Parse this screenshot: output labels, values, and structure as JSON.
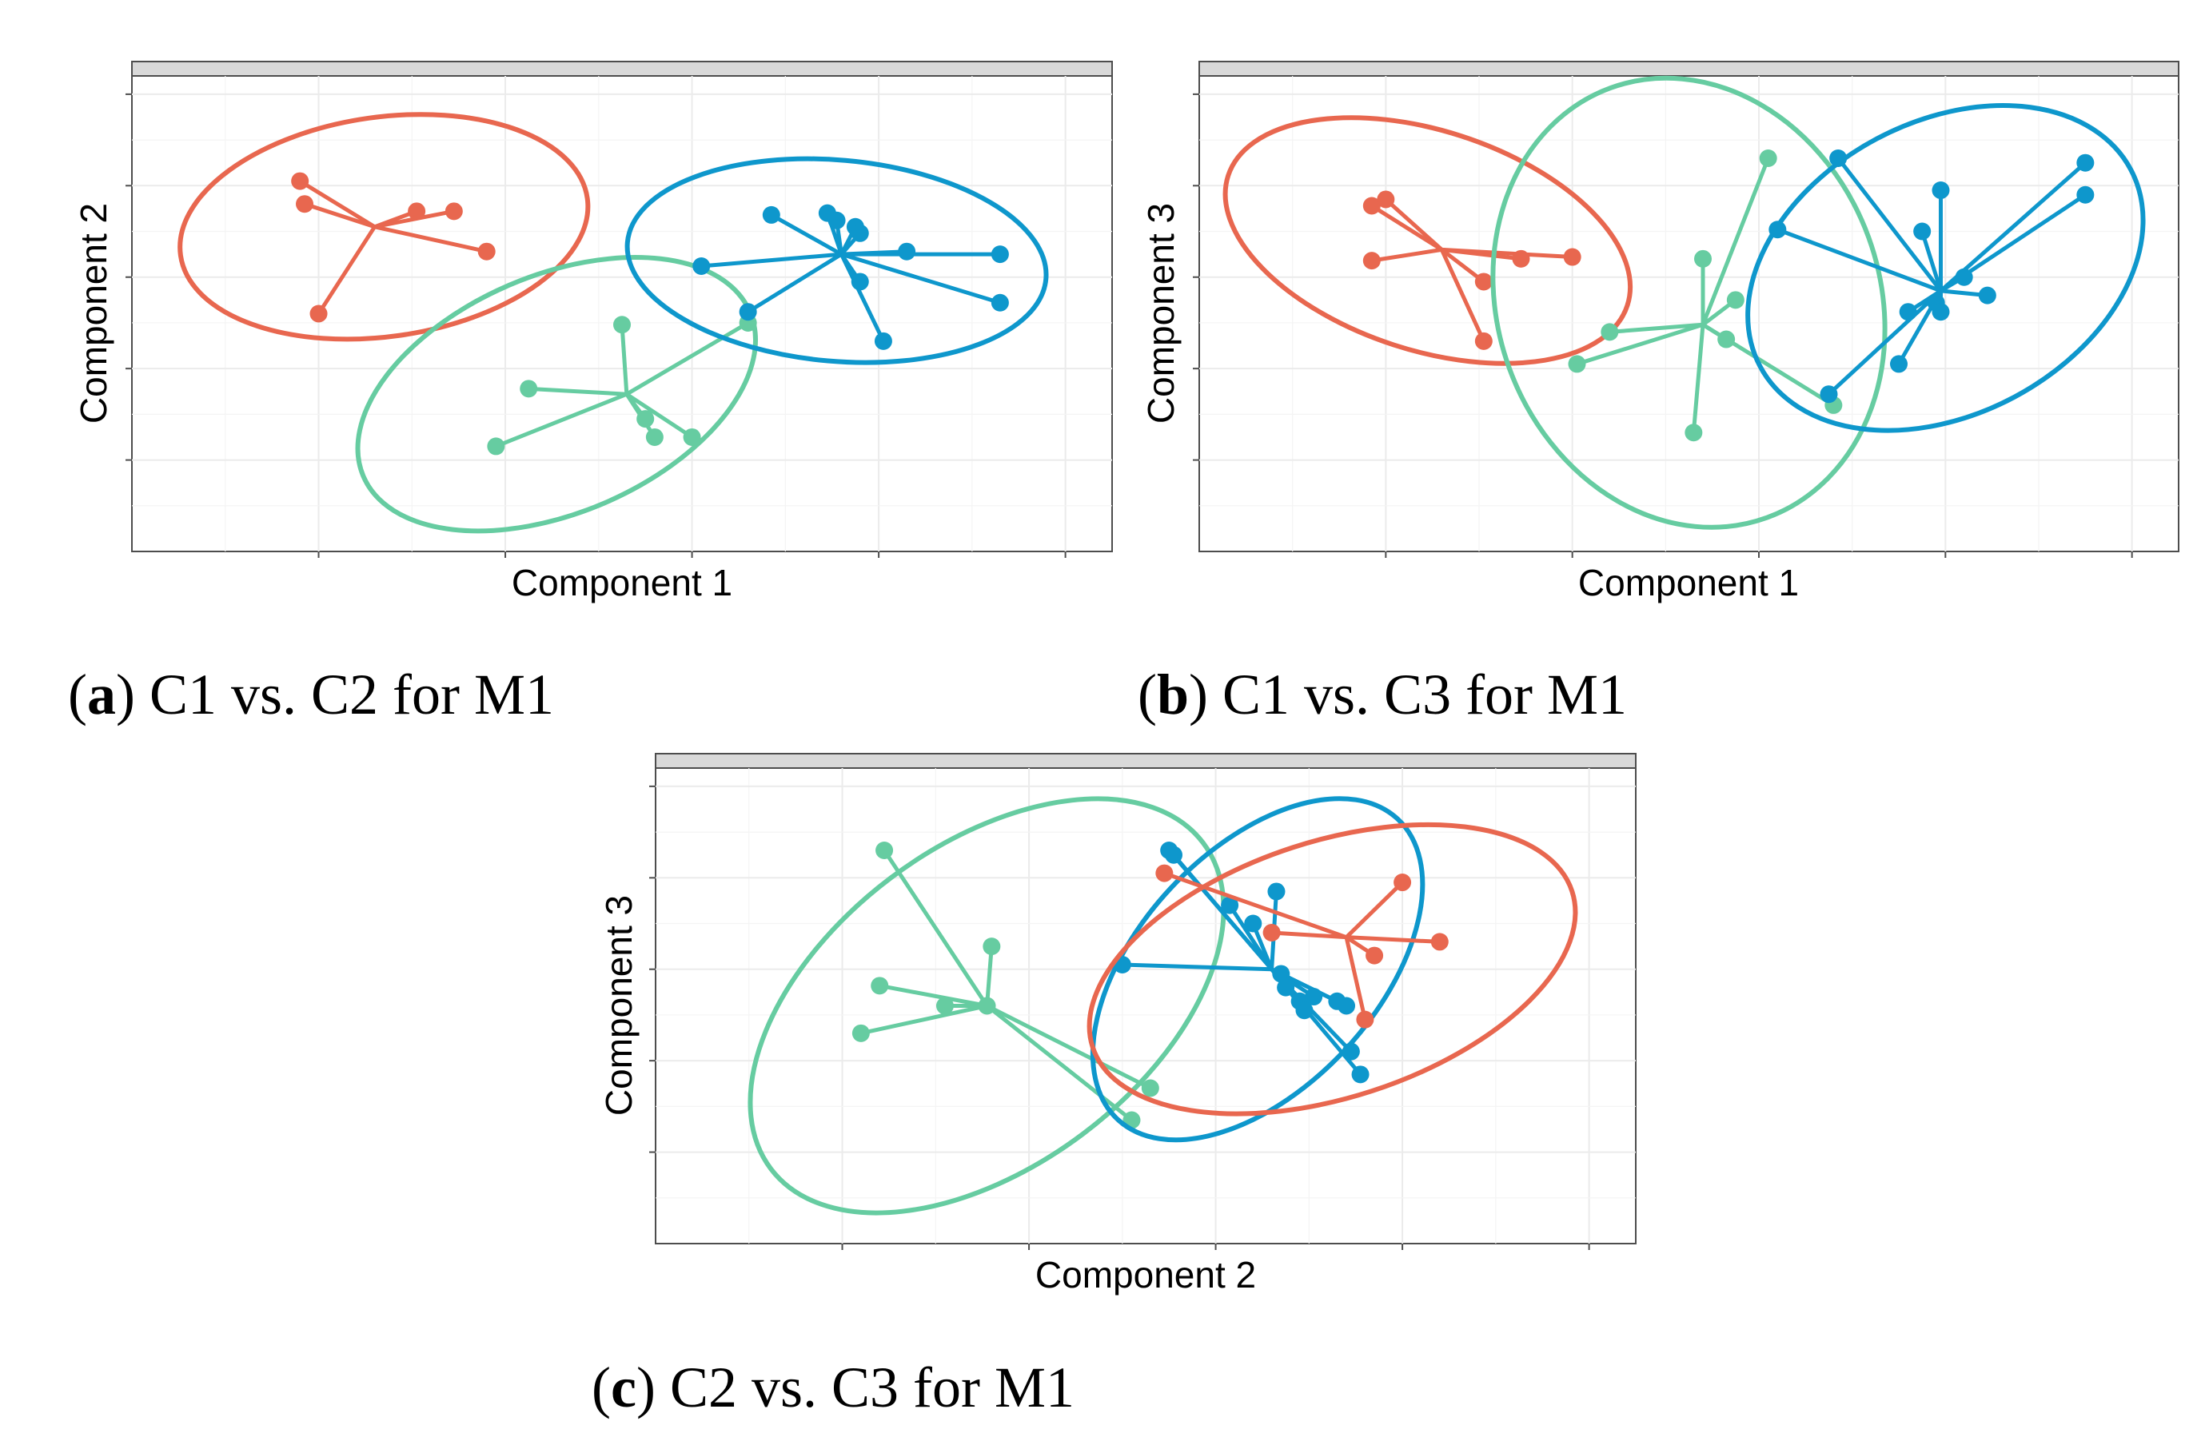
{
  "colors": {
    "red": "#E8674F",
    "green": "#66CCA1",
    "blue": "#0E97CC"
  },
  "captions": [
    {
      "label": "a",
      "text": "C1 vs. C2 for M1"
    },
    {
      "label": "b",
      "text": "C1 vs. C3 for M1"
    },
    {
      "label": "c",
      "text": "C2 vs. C3 for M1"
    }
  ],
  "chart_data": [
    {
      "type": "scatter",
      "panel": "a",
      "title": "C1 vs. C2 for M1",
      "xlabel": "Component 1",
      "ylabel": "Component 2",
      "xlim": [
        0,
        10.5
      ],
      "ylim": [
        0,
        5.2
      ],
      "series": [
        {
          "name": "group-red",
          "color": "#E8674F",
          "centroid": [
            2.6,
            3.55
          ],
          "ellipse": {
            "cx": 2.7,
            "cy": 3.55,
            "rx": 2.2,
            "ry": 1.2,
            "angle": 8
          },
          "points": [
            [
              1.8,
              4.05
            ],
            [
              1.85,
              3.8
            ],
            [
              3.05,
              3.72
            ],
            [
              3.45,
              3.72
            ],
            [
              3.8,
              3.28
            ],
            [
              2.0,
              2.6
            ]
          ]
        },
        {
          "name": "group-green",
          "color": "#66CCA1",
          "centroid": [
            5.3,
            1.72
          ],
          "ellipse": {
            "cx": 4.55,
            "cy": 1.72,
            "rx": 2.25,
            "ry": 1.3,
            "angle": 23
          },
          "points": [
            [
              5.25,
              2.48
            ],
            [
              4.25,
              1.78
            ],
            [
              5.5,
              1.45
            ],
            [
              5.6,
              1.25
            ],
            [
              6.0,
              1.25
            ],
            [
              3.9,
              1.15
            ],
            [
              6.6,
              2.5
            ]
          ]
        },
        {
          "name": "group-blue",
          "color": "#0E97CC",
          "centroid": [
            7.6,
            3.25
          ],
          "ellipse": {
            "cx": 7.55,
            "cy": 3.18,
            "rx": 2.25,
            "ry": 1.1,
            "angle": -5
          },
          "points": [
            [
              6.85,
              3.68
            ],
            [
              7.45,
              3.7
            ],
            [
              7.55,
              3.62
            ],
            [
              7.75,
              3.55
            ],
            [
              7.8,
              3.48
            ],
            [
              8.3,
              3.28
            ],
            [
              9.3,
              3.25
            ],
            [
              6.1,
              3.12
            ],
            [
              7.8,
              2.95
            ],
            [
              6.6,
              2.62
            ],
            [
              9.3,
              2.72
            ],
            [
              8.05,
              2.3
            ]
          ]
        }
      ]
    },
    {
      "type": "scatter",
      "panel": "b",
      "title": "C1 vs. C3 for M1",
      "xlabel": "Component 1",
      "ylabel": "Component 3",
      "xlim": [
        0,
        10.5
      ],
      "ylim": [
        0,
        5.2
      ],
      "series": [
        {
          "name": "group-red",
          "color": "#E8674F",
          "centroid": [
            2.6,
            3.3
          ],
          "ellipse": {
            "cx": 2.45,
            "cy": 3.4,
            "rx": 2.25,
            "ry": 1.2,
            "angle": -18
          },
          "points": [
            [
              1.85,
              3.78
            ],
            [
              2.0,
              3.85
            ],
            [
              1.85,
              3.18
            ],
            [
              3.45,
              3.2
            ],
            [
              4.0,
              3.22
            ],
            [
              3.05,
              2.95
            ],
            [
              3.05,
              2.3
            ]
          ]
        },
        {
          "name": "group-green",
          "color": "#66CCA1",
          "centroid": [
            5.4,
            2.48
          ],
          "ellipse": {
            "cx": 5.25,
            "cy": 2.72,
            "rx": 2.05,
            "ry": 2.5,
            "angle": 20
          },
          "points": [
            [
              6.1,
              4.3
            ],
            [
              5.4,
              3.2
            ],
            [
              5.75,
              2.75
            ],
            [
              4.4,
              2.4
            ],
            [
              5.65,
              2.32
            ],
            [
              4.05,
              2.05
            ],
            [
              6.8,
              1.6
            ],
            [
              5.3,
              1.3
            ]
          ]
        },
        {
          "name": "group-blue",
          "color": "#0E97CC",
          "centroid": [
            7.95,
            2.85
          ],
          "ellipse": {
            "cx": 8.0,
            "cy": 3.1,
            "rx": 2.25,
            "ry": 1.6,
            "angle": 28
          },
          "points": [
            [
              6.85,
              4.3
            ],
            [
              9.5,
              4.25
            ],
            [
              7.95,
              3.95
            ],
            [
              9.5,
              3.9
            ],
            [
              6.2,
              3.52
            ],
            [
              7.75,
              3.5
            ],
            [
              8.2,
              3.0
            ],
            [
              8.45,
              2.8
            ],
            [
              7.9,
              2.72
            ],
            [
              7.95,
              2.62
            ],
            [
              7.6,
              2.62
            ],
            [
              7.5,
              2.05
            ],
            [
              6.75,
              1.72
            ]
          ]
        }
      ]
    },
    {
      "type": "scatter",
      "panel": "c",
      "title": "C2 vs. C3 for M1",
      "xlabel": "Component 2",
      "ylabel": "Component 3",
      "xlim": [
        0,
        10.5
      ],
      "ylim": [
        0,
        5.2
      ],
      "series": [
        {
          "name": "group-green",
          "color": "#66CCA1",
          "centroid": [
            3.55,
            2.6
          ],
          "ellipse": {
            "cx": 3.55,
            "cy": 2.6,
            "rx": 2.9,
            "ry": 1.75,
            "angle": 37
          },
          "points": [
            [
              2.45,
              4.3
            ],
            [
              3.6,
              3.25
            ],
            [
              2.4,
              2.82
            ],
            [
              3.1,
              2.6
            ],
            [
              3.55,
              2.6
            ],
            [
              2.2,
              2.3
            ],
            [
              5.3,
              1.7
            ],
            [
              5.1,
              1.35
            ]
          ]
        },
        {
          "name": "group-blue",
          "color": "#0E97CC",
          "centroid": [
            6.6,
            3.0
          ],
          "ellipse": {
            "cx": 6.45,
            "cy": 3.0,
            "rx": 2.2,
            "ry": 1.3,
            "angle": 47
          },
          "points": [
            [
              5.5,
              4.3
            ],
            [
              5.55,
              4.25
            ],
            [
              6.15,
              3.7
            ],
            [
              6.65,
              3.85
            ],
            [
              6.4,
              3.5
            ],
            [
              5.0,
              3.05
            ],
            [
              6.7,
              2.95
            ],
            [
              6.75,
              2.8
            ],
            [
              6.9,
              2.65
            ],
            [
              7.05,
              2.7
            ],
            [
              7.3,
              2.65
            ],
            [
              6.95,
              2.55
            ],
            [
              7.4,
              2.6
            ],
            [
              7.45,
              2.1
            ],
            [
              7.55,
              1.85
            ]
          ]
        },
        {
          "name": "group-red",
          "color": "#E8674F",
          "centroid": [
            7.4,
            3.35
          ],
          "ellipse": {
            "cx": 7.25,
            "cy": 3.0,
            "rx": 2.7,
            "ry": 1.4,
            "angle": 18
          },
          "points": [
            [
              5.45,
              4.05
            ],
            [
              6.6,
              3.4
            ],
            [
              8.0,
              3.95
            ],
            [
              8.4,
              3.3
            ],
            [
              7.7,
              3.15
            ],
            [
              7.6,
              2.45
            ]
          ]
        }
      ]
    }
  ]
}
